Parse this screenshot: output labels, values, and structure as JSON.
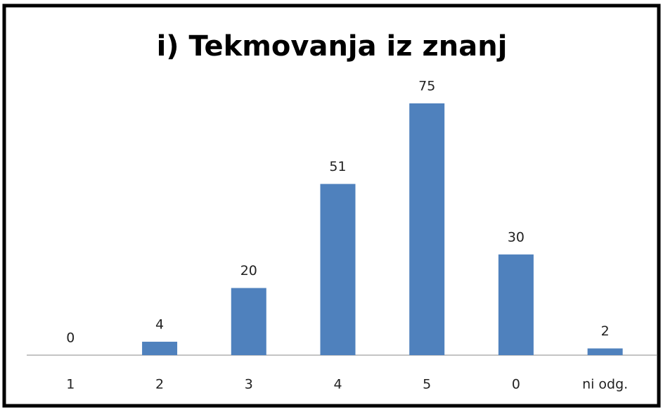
{
  "chart_data": {
    "type": "bar",
    "title": "i) Tekmovanja iz znanj",
    "categories": [
      "1",
      "2",
      "3",
      "4",
      "5",
      "0",
      "ni odg."
    ],
    "values": [
      0,
      4,
      20,
      51,
      75,
      30,
      2
    ],
    "color": "#4f81bd"
  }
}
